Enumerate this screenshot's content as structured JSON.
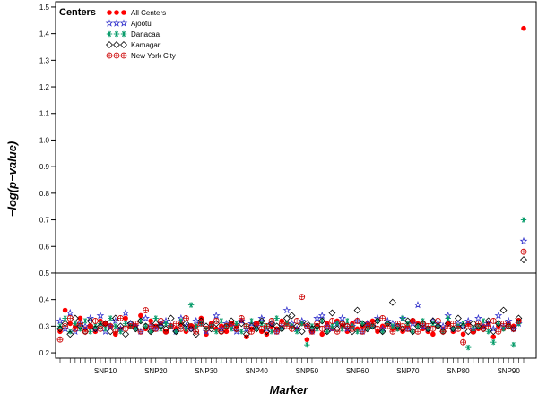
{
  "chart_data": {
    "type": "scatter",
    "title": "",
    "xlabel": "Marker",
    "ylabel": "−log(p−value)",
    "ylim": [
      0.18,
      1.52
    ],
    "yticks": [
      "0.2",
      "0.3",
      "0.4",
      "0.5",
      "0.6",
      "0.7",
      "0.8",
      "0.9",
      "1.0",
      "1.1",
      "1.2",
      "1.3",
      "1.4",
      "1.5"
    ],
    "reference_line_y": 0.5,
    "x_count": 93,
    "xtick_labels": [
      {
        "label": "SNP10",
        "index": 10
      },
      {
        "label": "SNP20",
        "index": 20
      },
      {
        "label": "SNP30",
        "index": 30
      },
      {
        "label": "SNP40",
        "index": 40
      },
      {
        "label": "SNP50",
        "index": 50
      },
      {
        "label": "SNP60",
        "index": 60
      },
      {
        "label": "SNP70",
        "index": 70
      },
      {
        "label": "SNP80",
        "index": 80
      },
      {
        "label": "SNP90",
        "index": 90
      }
    ],
    "legend": {
      "title": "Centers",
      "position": "top-left",
      "entries": [
        {
          "name": "All Centers",
          "symbol": "dot",
          "color": "#ff0000"
        },
        {
          "name": "Ajootu",
          "symbol": "star",
          "color": "#3333cc"
        },
        {
          "name": "Danacaa",
          "symbol": "asterisk",
          "color": "#009966"
        },
        {
          "name": "Kamagar",
          "symbol": "diamond",
          "color": "#000000"
        },
        {
          "name": "New York City",
          "symbol": "circle-plus",
          "color": "#cc0000"
        }
      ]
    },
    "series": [
      {
        "name": "All Centers",
        "symbol": "dot",
        "color": "#ff0000",
        "values": [
          0.28,
          0.36,
          0.31,
          0.3,
          0.33,
          0.29,
          0.3,
          0.28,
          0.32,
          0.31,
          0.3,
          0.27,
          0.29,
          0.33,
          0.3,
          0.3,
          0.34,
          0.29,
          0.32,
          0.3,
          0.31,
          0.28,
          0.3,
          0.29,
          0.31,
          0.28,
          0.3,
          0.3,
          0.33,
          0.27,
          0.31,
          0.29,
          0.3,
          0.28,
          0.31,
          0.3,
          0.32,
          0.26,
          0.29,
          0.31,
          0.28,
          0.27,
          0.3,
          0.29,
          0.32,
          0.31,
          0.3,
          0.29,
          0.31,
          0.25,
          0.28,
          0.3,
          0.27,
          0.31,
          0.29,
          0.32,
          0.3,
          0.28,
          0.31,
          0.29,
          0.3,
          0.31,
          0.32,
          0.28,
          0.3,
          0.31,
          0.29,
          0.29,
          0.28,
          0.3,
          0.32,
          0.31,
          0.29,
          0.28,
          0.27,
          0.3,
          0.29,
          0.31,
          0.28,
          0.3,
          0.27,
          0.31,
          0.28,
          0.29,
          0.3,
          0.31,
          0.26,
          0.3,
          0.29,
          0.31,
          0.3,
          0.32,
          1.42
        ]
      },
      {
        "name": "Ajootu",
        "symbol": "star",
        "color": "#3333cc",
        "values": [
          0.32,
          0.29,
          0.35,
          0.28,
          0.31,
          0.3,
          0.33,
          0.29,
          0.34,
          0.28,
          0.3,
          0.32,
          0.29,
          0.35,
          0.31,
          0.3,
          0.28,
          0.33,
          0.3,
          0.29,
          0.31,
          0.32,
          0.3,
          0.28,
          0.33,
          0.3,
          0.29,
          0.32,
          0.31,
          0.28,
          0.3,
          0.34,
          0.29,
          0.31,
          0.3,
          0.28,
          0.32,
          0.29,
          0.31,
          0.3,
          0.33,
          0.29,
          0.31,
          0.28,
          0.3,
          0.36,
          0.31,
          0.29,
          0.32,
          0.3,
          0.28,
          0.33,
          0.34,
          0.3,
          0.29,
          0.31,
          0.33,
          0.29,
          0.3,
          0.32,
          0.28,
          0.31,
          0.3,
          0.33,
          0.29,
          0.32,
          0.31,
          0.3,
          0.33,
          0.29,
          0.31,
          0.38,
          0.3,
          0.29,
          0.32,
          0.31,
          0.3,
          0.34,
          0.29,
          0.31,
          0.3,
          0.32,
          0.29,
          0.33,
          0.3,
          0.31,
          0.29,
          0.34,
          0.3,
          0.32,
          0.29,
          0.31,
          0.62
        ]
      },
      {
        "name": "Danacaa",
        "symbol": "asterisk",
        "color": "#009966",
        "values": [
          0.3,
          0.33,
          0.28,
          0.31,
          0.29,
          0.32,
          0.28,
          0.3,
          0.31,
          0.29,
          0.33,
          0.3,
          0.28,
          0.31,
          0.3,
          0.29,
          0.32,
          0.3,
          0.28,
          0.33,
          0.29,
          0.31,
          0.3,
          0.28,
          0.32,
          0.29,
          0.38,
          0.3,
          0.31,
          0.29,
          0.3,
          0.28,
          0.32,
          0.3,
          0.29,
          0.31,
          0.28,
          0.3,
          0.32,
          0.29,
          0.31,
          0.3,
          0.28,
          0.33,
          0.29,
          0.31,
          0.3,
          0.28,
          0.31,
          0.23,
          0.3,
          0.29,
          0.32,
          0.28,
          0.3,
          0.31,
          0.29,
          0.32,
          0.3,
          0.28,
          0.31,
          0.29,
          0.3,
          0.32,
          0.28,
          0.31,
          0.3,
          0.29,
          0.33,
          0.31,
          0.28,
          0.3,
          0.32,
          0.29,
          0.31,
          0.3,
          0.28,
          0.33,
          0.29,
          0.3,
          0.31,
          0.22,
          0.29,
          0.3,
          0.32,
          0.28,
          0.24,
          0.31,
          0.29,
          0.3,
          0.23,
          0.31,
          0.7
        ]
      },
      {
        "name": "Kamagar",
        "symbol": "diamond",
        "color": "#000000",
        "values": [
          0.29,
          0.31,
          0.27,
          0.33,
          0.3,
          0.28,
          0.32,
          0.29,
          0.3,
          0.31,
          0.28,
          0.33,
          0.3,
          0.27,
          0.31,
          0.29,
          0.32,
          0.3,
          0.28,
          0.31,
          0.3,
          0.29,
          0.33,
          0.28,
          0.3,
          0.31,
          0.29,
          0.27,
          0.32,
          0.3,
          0.29,
          0.31,
          0.28,
          0.3,
          0.32,
          0.29,
          0.31,
          0.27,
          0.3,
          0.29,
          0.32,
          0.28,
          0.31,
          0.3,
          0.29,
          0.33,
          0.34,
          0.3,
          0.28,
          0.31,
          0.29,
          0.3,
          0.32,
          0.28,
          0.35,
          0.29,
          0.31,
          0.3,
          0.28,
          0.36,
          0.31,
          0.29,
          0.3,
          0.32,
          0.28,
          0.31,
          0.39,
          0.3,
          0.29,
          0.32,
          0.28,
          0.3,
          0.31,
          0.29,
          0.32,
          0.3,
          0.28,
          0.31,
          0.29,
          0.33,
          0.3,
          0.28,
          0.31,
          0.3,
          0.29,
          0.32,
          0.28,
          0.31,
          0.36,
          0.3,
          0.29,
          0.33,
          0.55
        ]
      },
      {
        "name": "New York City",
        "symbol": "circle-plus",
        "color": "#cc0000",
        "values": [
          0.25,
          0.3,
          0.33,
          0.29,
          0.31,
          0.28,
          0.3,
          0.32,
          0.29,
          0.31,
          0.3,
          0.28,
          0.33,
          0.29,
          0.3,
          0.31,
          0.28,
          0.36,
          0.3,
          0.29,
          0.32,
          0.28,
          0.3,
          0.31,
          0.29,
          0.33,
          0.3,
          0.28,
          0.31,
          0.29,
          0.3,
          0.32,
          0.28,
          0.3,
          0.31,
          0.29,
          0.33,
          0.3,
          0.28,
          0.31,
          0.29,
          0.3,
          0.32,
          0.28,
          0.31,
          0.3,
          0.29,
          0.32,
          0.41,
          0.3,
          0.28,
          0.31,
          0.29,
          0.3,
          0.32,
          0.28,
          0.31,
          0.3,
          0.29,
          0.32,
          0.28,
          0.3,
          0.31,
          0.29,
          0.33,
          0.3,
          0.28,
          0.31,
          0.3,
          0.29,
          0.32,
          0.28,
          0.31,
          0.3,
          0.29,
          0.32,
          0.28,
          0.3,
          0.31,
          0.29,
          0.24,
          0.3,
          0.28,
          0.31,
          0.29,
          0.3,
          0.32,
          0.28,
          0.31,
          0.3,
          0.29,
          0.32,
          0.58
        ]
      }
    ]
  }
}
